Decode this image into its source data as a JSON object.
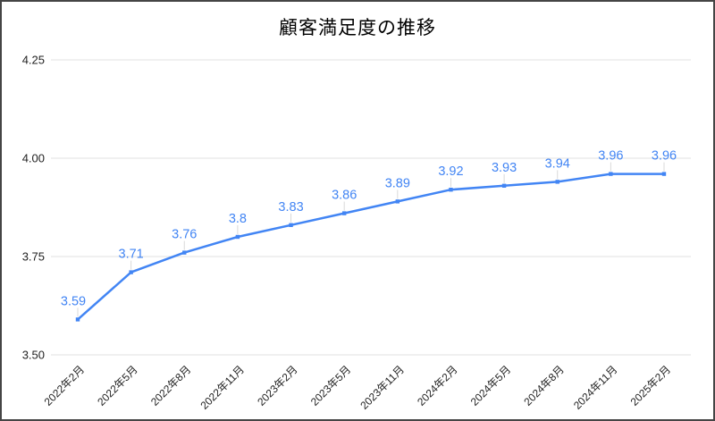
{
  "chart": {
    "colors": {
      "series": "#4285f4",
      "data_label": "#4285f4",
      "gridline": "#e0e0e0",
      "leader_line": "#d9d9d9",
      "axis_text": "#1f1f1f",
      "title_text": "#000000",
      "frame_border": "#454545",
      "background": "#ffffff"
    }
  },
  "chart_data": {
    "type": "line",
    "title": "顧客満足度の推移",
    "categories": [
      "2022年2月",
      "2022年5月",
      "2022年8月",
      "2022年11月",
      "2023年2月",
      "2023年5月",
      "2023年11月",
      "2024年2月",
      "2024年5月",
      "2024年8月",
      "2024年11月",
      "2025年2月"
    ],
    "series": [
      {
        "values": [
          3.59,
          3.71,
          3.76,
          3.8,
          3.83,
          3.86,
          3.89,
          3.92,
          3.93,
          3.94,
          3.96,
          3.96
        ]
      }
    ],
    "data_labels": [
      "3.59",
      "3.71",
      "3.76",
      "3.8",
      "3.83",
      "3.86",
      "3.89",
      "3.92",
      "3.93",
      "3.94",
      "3.96",
      "3.96"
    ],
    "ylim": [
      3.5,
      4.25
    ],
    "yticks": [
      3.5,
      3.75,
      4.0,
      4.25
    ],
    "ytick_labels": [
      "3.50",
      "3.75",
      "4.00",
      "4.25"
    ],
    "xlabel": "",
    "ylabel": "",
    "grid": true,
    "legend": "none",
    "x_tick_rotation_deg": -45,
    "point_marker": "square"
  }
}
